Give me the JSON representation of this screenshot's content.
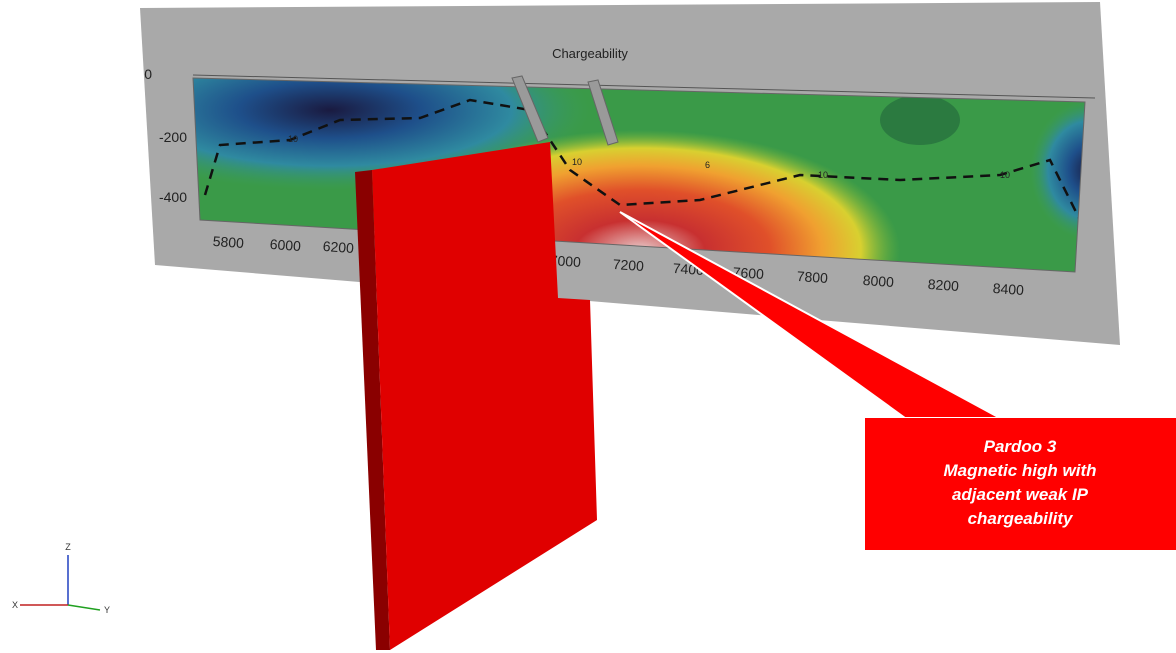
{
  "section": {
    "title": "Chargeability",
    "depth_labels": [
      "0",
      "-200",
      "-400"
    ],
    "easting_labels": [
      "5800",
      "6000",
      "6200",
      "7000",
      "7200",
      "7400",
      "7600",
      "7800",
      "8000",
      "8200",
      "8400"
    ],
    "contour_labels": [
      "10",
      "10",
      "6",
      "10",
      "10"
    ]
  },
  "callout": {
    "lines": [
      "Pardoo 3",
      "Magnetic high with",
      "adjacent weak IP",
      "chargeability"
    ]
  },
  "axes_gizmo": {
    "x": "X",
    "y": "Y",
    "z": "Z"
  }
}
